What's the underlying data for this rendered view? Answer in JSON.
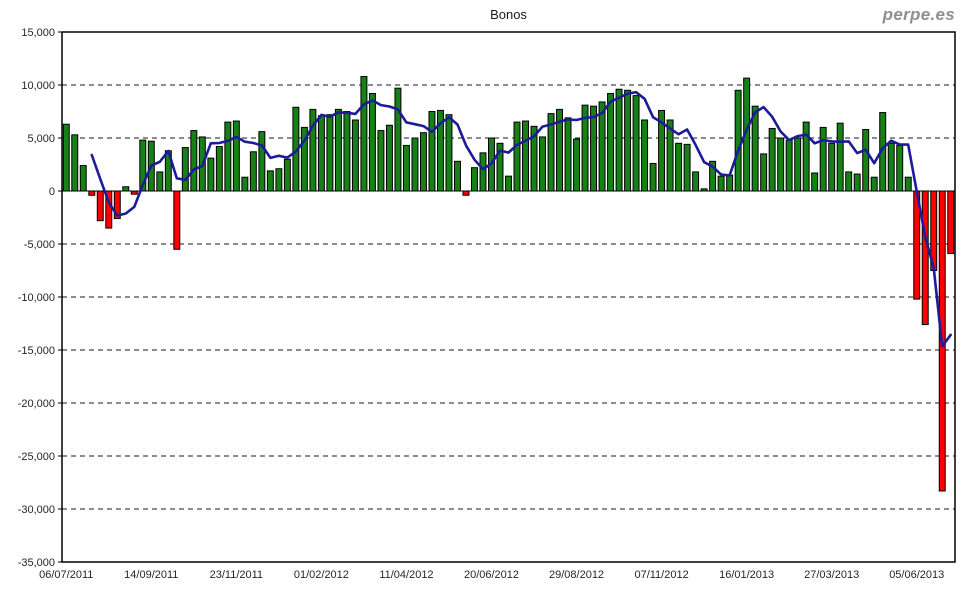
{
  "header": {
    "logo": "perpe.es"
  },
  "chart_data": {
    "type": "bar",
    "title": "Bonos",
    "xlabel": "",
    "ylabel": "",
    "ylim": [
      -35000,
      15000
    ],
    "y_ticks": [
      15000,
      10000,
      5000,
      0,
      -5000,
      -10000,
      -15000,
      -20000,
      -25000,
      -30000,
      -35000
    ],
    "y_tick_labels": [
      "15,000",
      "10,000",
      "5,000",
      "0",
      "-5,000",
      "-10,000",
      "-15,000",
      "-20,000",
      "-25,000",
      "-30,000",
      "-35,000"
    ],
    "grid": "horizontal-dashed-black",
    "legend_position": "none",
    "x_tick_every": 10,
    "x_tick_labels": [
      "06/07/2011",
      "14/09/2011",
      "23/11/2011",
      "01/02/2012",
      "11/04/2012",
      "20/06/2012",
      "29/08/2012",
      "07/11/2012",
      "16/01/2013",
      "27/03/2013",
      "05/06/2013"
    ],
    "series": [
      {
        "name": "weekly-bars",
        "type": "bar",
        "values": [
          6300,
          5300,
          2400,
          -400,
          -2800,
          -3500,
          -2600,
          400,
          -300,
          4800,
          4700,
          1800,
          3800,
          -5500,
          4100,
          5700,
          5100,
          3100,
          4200,
          6500,
          6600,
          1300,
          3700,
          5600,
          1900,
          2100,
          3000,
          7900,
          6000,
          7700,
          7100,
          7200,
          7700,
          7500,
          6700,
          10800,
          9200,
          5700,
          6200,
          9700,
          4300,
          5000,
          5500,
          7500,
          7600,
          7200,
          2800,
          -400,
          2200,
          3600,
          5000,
          4500,
          1400,
          6500,
          6600,
          6100,
          5100,
          7300,
          7700,
          6900,
          4900,
          8100,
          8000,
          8400,
          9200,
          9600,
          9500,
          9000,
          6700,
          2600,
          7600,
          6700,
          4500,
          4400,
          1800,
          200,
          2800,
          1400,
          1500,
          9500,
          10650,
          8000,
          3500,
          5900,
          5000,
          4800,
          5000,
          6500,
          1700,
          6000,
          4500,
          6400,
          1800,
          1600,
          5800,
          1300,
          7400,
          4500,
          4300,
          1300,
          -10200,
          -12600,
          -7500,
          -28300,
          -5900
        ]
      },
      {
        "name": "moving-average-line",
        "type": "line",
        "values": [
          null,
          null,
          null,
          3400,
          1125,
          -1075,
          -2325,
          -2125,
          -1500,
          575,
          2400,
          2750,
          3775,
          1200,
          1050,
          2025,
          2350,
          4500,
          4525,
          4725,
          5100,
          4650,
          4525,
          4300,
          3125,
          3325,
          3150,
          3725,
          4750,
          6150,
          7175,
          7000,
          7425,
          7375,
          7275,
          8175,
          8550,
          8100,
          7975,
          7700,
          6475,
          6300,
          6125,
          5575,
          6400,
          6950,
          6275,
          4300,
          2950,
          2050,
          2600,
          3825,
          3625,
          4350,
          4750,
          5150,
          6075,
          6275,
          6550,
          6750,
          6700,
          6900,
          6975,
          7350,
          8425,
          8800,
          9175,
          9325,
          8700,
          6950,
          6475,
          5900,
          5350,
          5800,
          4350,
          2725,
          2300,
          1550,
          1475,
          3800,
          5763,
          7413,
          7913,
          7013,
          5600,
          4800,
          5175,
          5325,
          4500,
          4800,
          4675,
          4650,
          4675,
          3575,
          3900,
          2625,
          4025,
          4750,
          4375,
          4375,
          -25,
          -4300,
          -7250,
          -14650,
          -13575
        ]
      }
    ],
    "colors": {
      "bar_positive": "#178017",
      "bar_negative": "#fe0000",
      "bar_border": "#000000",
      "line": "#1c1c99",
      "grid": "#1a1a1a",
      "axis": "#000000",
      "text": "#262626",
      "logo": "#8f8f8f"
    }
  }
}
